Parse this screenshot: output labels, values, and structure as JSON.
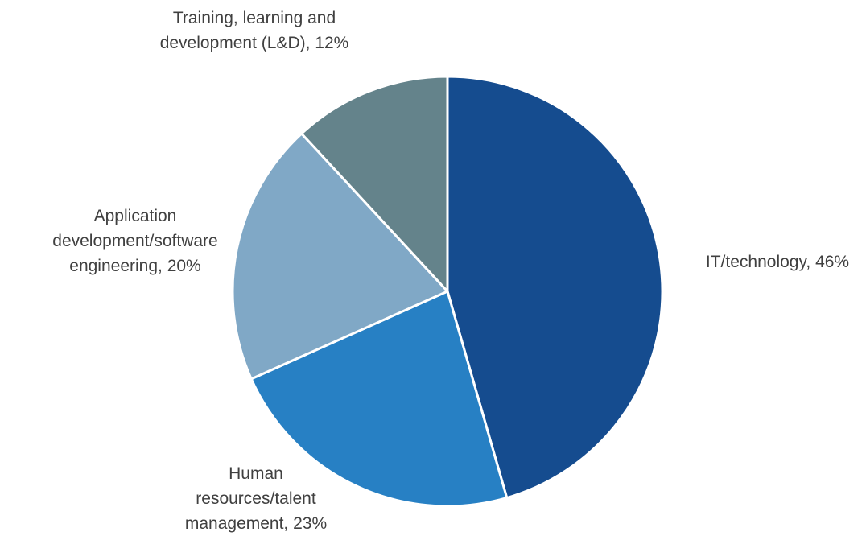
{
  "chart_data": {
    "type": "pie",
    "values": [
      46,
      23,
      20,
      12
    ],
    "value_labels": [
      "IT/technology, 46%",
      "Human resources/talent management, 23%",
      "Application development/software engineering, 20%",
      "Training, learning and development (L&D), 12%"
    ],
    "colors": [
      "#154c8f",
      "#2780c4",
      "#80a8c6",
      "#64838b"
    ]
  }
}
